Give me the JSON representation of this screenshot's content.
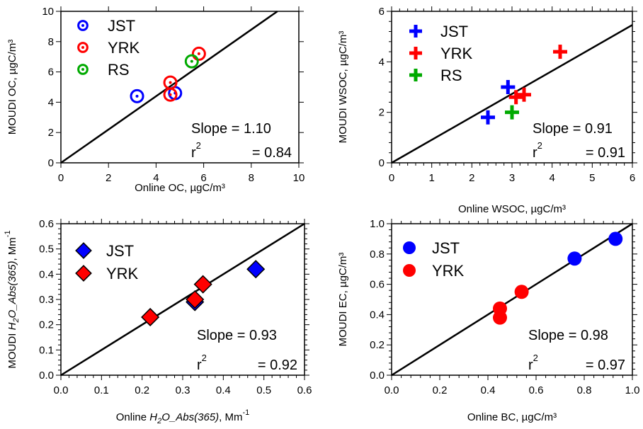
{
  "chart_data": [
    {
      "type": "scatter",
      "xlabel": "Online OC, µgC/m³",
      "ylabel": "MOUDI OC, µgC/m³",
      "xlim": [
        0,
        10
      ],
      "ylim": [
        0,
        10
      ],
      "xticks": [
        "0",
        "2",
        "4",
        "6",
        "8",
        "10"
      ],
      "yticks": [
        "0",
        "2",
        "4",
        "6",
        "8",
        "10"
      ],
      "marker": "ring",
      "legend_position": "top-left",
      "series": [
        {
          "name": "JST",
          "color": "#0000ff",
          "x": [
            3.2,
            4.8
          ],
          "y": [
            4.4,
            4.6
          ]
        },
        {
          "name": "YRK",
          "color": "#ff0000",
          "x": [
            4.6,
            4.6,
            5.8
          ],
          "y": [
            5.3,
            4.5,
            7.2
          ]
        },
        {
          "name": "RS",
          "color": "#00aa00",
          "x": [
            5.5
          ],
          "y": [
            6.7
          ]
        }
      ],
      "fit_line": {
        "x": [
          0,
          9.1
        ],
        "y": [
          0,
          10
        ]
      },
      "slope_text": "Slope = 1.10",
      "r2_text": "= 0.84"
    },
    {
      "type": "scatter",
      "xlabel": "Online WSOC, µgC/m³",
      "ylabel": "MOUDI WSOC, µgC/m³",
      "xlim": [
        0,
        6
      ],
      "ylim": [
        0,
        6
      ],
      "xticks": [
        "0",
        "1",
        "2",
        "3",
        "4",
        "5",
        "6"
      ],
      "yticks": [
        "0",
        "2",
        "4",
        "6"
      ],
      "marker": "cross",
      "legend_position": "top-left",
      "series": [
        {
          "name": "JST",
          "color": "#0000ff",
          "x": [
            2.4,
            2.9
          ],
          "y": [
            1.8,
            3.0
          ]
        },
        {
          "name": "YRK",
          "color": "#ff0000",
          "x": [
            3.1,
            3.3,
            4.2
          ],
          "y": [
            2.6,
            2.7,
            4.4
          ]
        },
        {
          "name": "RS",
          "color": "#00aa00",
          "x": [
            3.0
          ],
          "y": [
            2.0
          ]
        }
      ],
      "fit_line": {
        "x": [
          0,
          6
        ],
        "y": [
          0,
          5.46
        ]
      },
      "slope_text": "Slope = 0.91",
      "r2_text": "= 0.91"
    },
    {
      "type": "scatter",
      "xlabel_prefix": "Online ",
      "xlabel_var": "H",
      "xlabel_sub": "2",
      "xlabel_var2": "O_Abs(365)",
      "xlabel_suffix": ", Mm",
      "xlabel_sup": "-1",
      "ylabel_prefix": "MOUDI ",
      "ylabel_var": "H",
      "ylabel_sub": "2",
      "ylabel_var2": "O_Abs(365)",
      "ylabel_suffix": ", Mm",
      "ylabel_sup": "-1",
      "xlim": [
        0,
        0.6
      ],
      "ylim": [
        0,
        0.6
      ],
      "xticks": [
        "0.0",
        "0.1",
        "0.2",
        "0.3",
        "0.4",
        "0.5",
        "0.6"
      ],
      "yticks": [
        "0.0",
        "0.1",
        "0.2",
        "0.3",
        "0.4",
        "0.5",
        "0.6"
      ],
      "marker": "diamond",
      "legend_position": "top-left",
      "series": [
        {
          "name": "JST",
          "color": "#0000ff",
          "x": [
            0.33,
            0.48
          ],
          "y": [
            0.29,
            0.42
          ]
        },
        {
          "name": "YRK",
          "color": "#ff0000",
          "x": [
            0.22,
            0.33,
            0.35
          ],
          "y": [
            0.23,
            0.3,
            0.36
          ]
        }
      ],
      "fit_line": {
        "x": [
          0,
          0.6
        ],
        "y": [
          0,
          0.6
        ]
      },
      "slope_text": "Slope = 0.93",
      "r2_text": "= 0.92"
    },
    {
      "type": "scatter",
      "xlabel": "Online BC, µgC/m³",
      "ylabel": "MOUDI EC, µgC/m³",
      "xlim": [
        0,
        1.0
      ],
      "ylim": [
        0,
        1.0
      ],
      "xticks": [
        "0.0",
        "0.2",
        "0.4",
        "0.6",
        "0.8",
        "1.0"
      ],
      "yticks": [
        "0.0",
        "0.2",
        "0.4",
        "0.6",
        "0.8",
        "1.0"
      ],
      "marker": "dot",
      "legend_position": "top-left",
      "series": [
        {
          "name": "JST",
          "color": "#0000ff",
          "x": [
            0.76,
            0.93
          ],
          "y": [
            0.77,
            0.9
          ]
        },
        {
          "name": "YRK",
          "color": "#ff0000",
          "x": [
            0.45,
            0.45,
            0.54
          ],
          "y": [
            0.38,
            0.44,
            0.55
          ]
        }
      ],
      "fit_line": {
        "x": [
          0,
          1.0
        ],
        "y": [
          0,
          1.0
        ]
      },
      "slope_text": "Slope = 0.98",
      "r2_text": "= 0.97"
    }
  ]
}
